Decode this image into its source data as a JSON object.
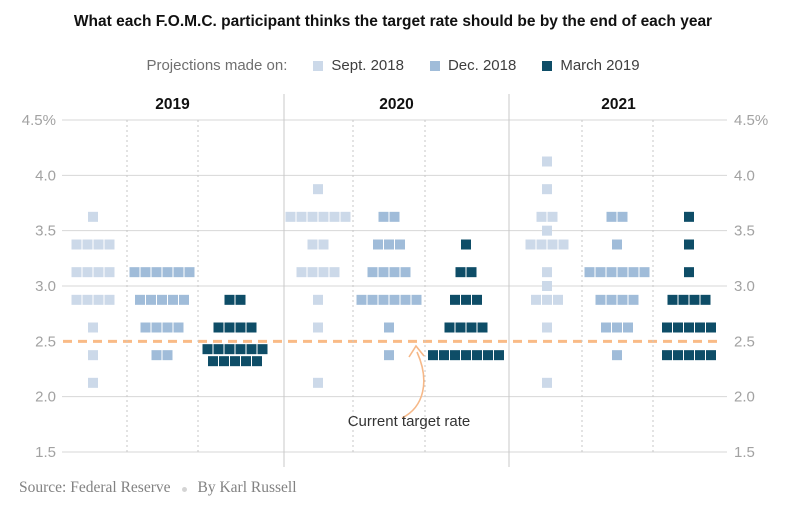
{
  "meta": {
    "source": "Source: Federal Reserve",
    "byline": "By Karl Russell"
  },
  "chart_data": {
    "type": "scatter",
    "subtype": "fomc-dot-plot",
    "title": "What each F.O.M.C. participant thinks the target rate should be by the end of each year",
    "legend_label": "Projections made on:",
    "series": [
      {
        "name": "Sept. 2018",
        "color": "#ccd9e9"
      },
      {
        "name": "Dec. 2018",
        "color": "#a0bcd9"
      },
      {
        "name": "March 2019",
        "color": "#0e4d67"
      }
    ],
    "y_axis": {
      "tick_labels": [
        "4.5%",
        "4.0",
        "3.5",
        "3.0",
        "2.5",
        "2.0",
        "1.5"
      ],
      "tick_values": [
        4.5,
        4.0,
        3.5,
        3.0,
        2.5,
        2.0,
        1.5
      ],
      "range": [
        1.5,
        4.5
      ],
      "labels_on_both_sides": true
    },
    "reference_line": {
      "value": 2.5,
      "label": "Current target rate",
      "color": "#f9bb87",
      "arrow_color": "#f6b888"
    },
    "panels": [
      {
        "year": "2019",
        "series": [
          {
            "name": "Sept. 2018",
            "dots": [
              [
                3.625,
                1
              ],
              [
                3.375,
                4
              ],
              [
                3.125,
                4
              ],
              [
                2.875,
                4
              ],
              [
                2.625,
                1
              ],
              [
                2.375,
                1
              ],
              [
                2.125,
                1
              ]
            ]
          },
          {
            "name": "Dec. 2018",
            "dots": [
              [
                3.125,
                6
              ],
              [
                2.875,
                5
              ],
              [
                2.625,
                4
              ],
              [
                2.375,
                2
              ]
            ]
          },
          {
            "name": "March 2019",
            "dots": [
              [
                2.875,
                2
              ],
              [
                2.625,
                4
              ],
              [
                2.375,
                11
              ]
            ]
          }
        ]
      },
      {
        "year": "2020",
        "series": [
          {
            "name": "Sept. 2018",
            "dots": [
              [
                3.875,
                1
              ],
              [
                3.625,
                6
              ],
              [
                3.375,
                2
              ],
              [
                3.125,
                4
              ],
              [
                2.875,
                1
              ],
              [
                2.625,
                1
              ],
              [
                2.125,
                1
              ]
            ]
          },
          {
            "name": "Dec. 2018",
            "dots": [
              [
                3.625,
                2
              ],
              [
                3.375,
                3
              ],
              [
                3.125,
                4
              ],
              [
                2.875,
                6
              ],
              [
                2.625,
                1
              ],
              [
                2.375,
                1
              ]
            ]
          },
          {
            "name": "March 2019",
            "dots": [
              [
                3.375,
                1
              ],
              [
                3.125,
                2
              ],
              [
                2.875,
                3
              ],
              [
                2.625,
                4
              ],
              [
                2.375,
                7
              ]
            ]
          }
        ]
      },
      {
        "year": "2021",
        "series": [
          {
            "name": "Sept. 2018",
            "dots": [
              [
                4.125,
                1
              ],
              [
                3.875,
                1
              ],
              [
                3.625,
                2
              ],
              [
                3.5,
                1
              ],
              [
                3.375,
                4
              ],
              [
                3.125,
                1
              ],
              [
                3.0,
                1
              ],
              [
                2.875,
                3
              ],
              [
                2.625,
                1
              ],
              [
                2.125,
                1
              ]
            ]
          },
          {
            "name": "Dec. 2018",
            "dots": [
              [
                3.625,
                2
              ],
              [
                3.375,
                1
              ],
              [
                3.125,
                6
              ],
              [
                2.875,
                4
              ],
              [
                2.625,
                3
              ],
              [
                2.375,
                1
              ]
            ]
          },
          {
            "name": "March 2019",
            "dots": [
              [
                3.625,
                1
              ],
              [
                3.375,
                1
              ],
              [
                3.125,
                1
              ],
              [
                2.875,
                4
              ],
              [
                2.625,
                5
              ],
              [
                2.375,
                5
              ]
            ]
          }
        ]
      }
    ],
    "style_colors": {
      "grid": "#d7d7d7",
      "panel_separator": "#c9c9c9",
      "column_dotted": "#c7c7c7",
      "axis_label": "#a2a2a2",
      "panel_title": "#111111"
    }
  }
}
